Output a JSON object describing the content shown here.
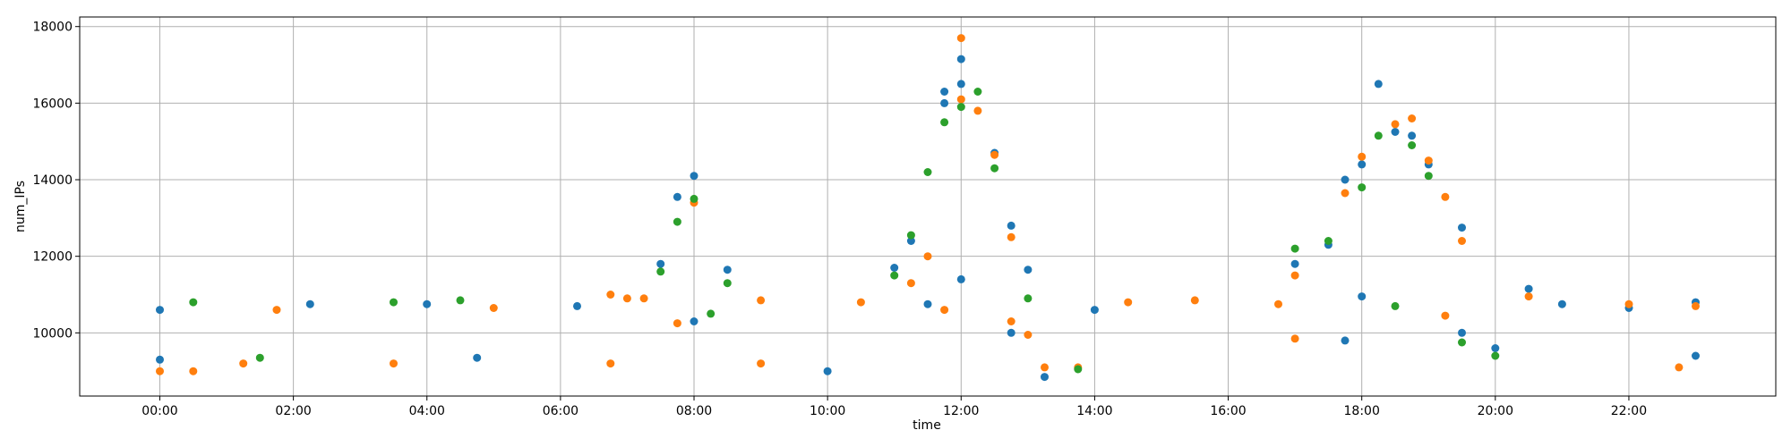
{
  "chart_data": {
    "type": "scatter",
    "title": "",
    "xlabel": "time",
    "ylabel": "num_IPs",
    "xlim": [
      -1.2,
      24.2
    ],
    "ylim": [
      8350,
      18250
    ],
    "grid": true,
    "x_ticks": [
      {
        "value": 0,
        "label": "00:00"
      },
      {
        "value": 2,
        "label": "02:00"
      },
      {
        "value": 4,
        "label": "04:00"
      },
      {
        "value": 6,
        "label": "06:00"
      },
      {
        "value": 8,
        "label": "08:00"
      },
      {
        "value": 10,
        "label": "10:00"
      },
      {
        "value": 12,
        "label": "12:00"
      },
      {
        "value": 14,
        "label": "14:00"
      },
      {
        "value": 16,
        "label": "16:00"
      },
      {
        "value": 18,
        "label": "18:00"
      },
      {
        "value": 20,
        "label": "20:00"
      },
      {
        "value": 22,
        "label": "22:00"
      }
    ],
    "y_ticks": [
      {
        "value": 10000,
        "label": "10000"
      },
      {
        "value": 12000,
        "label": "12000"
      },
      {
        "value": 14000,
        "label": "14000"
      },
      {
        "value": 16000,
        "label": "16000"
      },
      {
        "value": 18000,
        "label": "18000"
      }
    ],
    "x_interval_hours": 0.25,
    "series": [
      {
        "color": "#1f77b4",
        "points": [
          {
            "x": 0,
            "y": 9300
          },
          {
            "x": 0,
            "y": 10600
          },
          {
            "x": 2.25,
            "y": 10750
          },
          {
            "x": 4,
            "y": 10750
          },
          {
            "x": 4.75,
            "y": 9350
          },
          {
            "x": 6.25,
            "y": 10700
          },
          {
            "x": 7.5,
            "y": 11800
          },
          {
            "x": 7.75,
            "y": 13550
          },
          {
            "x": 8,
            "y": 14100
          },
          {
            "x": 8,
            "y": 10300
          },
          {
            "x": 8.5,
            "y": 11650
          },
          {
            "x": 10,
            "y": 9000
          },
          {
            "x": 11,
            "y": 11700
          },
          {
            "x": 11.25,
            "y": 12400
          },
          {
            "x": 11.5,
            "y": 10750
          },
          {
            "x": 11.75,
            "y": 16300
          },
          {
            "x": 11.75,
            "y": 16000
          },
          {
            "x": 12,
            "y": 17150
          },
          {
            "x": 12,
            "y": 16500
          },
          {
            "x": 12,
            "y": 11400
          },
          {
            "x": 12.5,
            "y": 14700
          },
          {
            "x": 12.75,
            "y": 12800
          },
          {
            "x": 12.75,
            "y": 10000
          },
          {
            "x": 13,
            "y": 11650
          },
          {
            "x": 13.25,
            "y": 8850
          },
          {
            "x": 14,
            "y": 10600
          },
          {
            "x": 17,
            "y": 11800
          },
          {
            "x": 17.5,
            "y": 12300
          },
          {
            "x": 17.75,
            "y": 14000
          },
          {
            "x": 17.75,
            "y": 9800
          },
          {
            "x": 18,
            "y": 14400
          },
          {
            "x": 18,
            "y": 10950
          },
          {
            "x": 18.25,
            "y": 16500
          },
          {
            "x": 18.5,
            "y": 15250
          },
          {
            "x": 18.75,
            "y": 15150
          },
          {
            "x": 19,
            "y": 14400
          },
          {
            "x": 19.5,
            "y": 12750
          },
          {
            "x": 19.5,
            "y": 10000
          },
          {
            "x": 20,
            "y": 9600
          },
          {
            "x": 20.5,
            "y": 11150
          },
          {
            "x": 21,
            "y": 10750
          },
          {
            "x": 22,
            "y": 10650
          },
          {
            "x": 23,
            "y": 10800
          },
          {
            "x": 23,
            "y": 9400
          }
        ]
      },
      {
        "color": "#ff7f0e",
        "points": [
          {
            "x": 0,
            "y": 9000
          },
          {
            "x": 0.5,
            "y": 9000
          },
          {
            "x": 1.25,
            "y": 9200
          },
          {
            "x": 1.75,
            "y": 10600
          },
          {
            "x": 3.5,
            "y": 9200
          },
          {
            "x": 5,
            "y": 10650
          },
          {
            "x": 6.75,
            "y": 11000
          },
          {
            "x": 6.75,
            "y": 9200
          },
          {
            "x": 7,
            "y": 10900
          },
          {
            "x": 7.25,
            "y": 10900
          },
          {
            "x": 7.75,
            "y": 10250
          },
          {
            "x": 8,
            "y": 13400
          },
          {
            "x": 9,
            "y": 10850
          },
          {
            "x": 9,
            "y": 9200
          },
          {
            "x": 10.5,
            "y": 10800
          },
          {
            "x": 11.25,
            "y": 11300
          },
          {
            "x": 11.5,
            "y": 12000
          },
          {
            "x": 11.75,
            "y": 10600
          },
          {
            "x": 12,
            "y": 17700
          },
          {
            "x": 12,
            "y": 16100
          },
          {
            "x": 12.25,
            "y": 15800
          },
          {
            "x": 12.5,
            "y": 14650
          },
          {
            "x": 12.75,
            "y": 12500
          },
          {
            "x": 12.75,
            "y": 10300
          },
          {
            "x": 13,
            "y": 9950
          },
          {
            "x": 13.25,
            "y": 9100
          },
          {
            "x": 13.75,
            "y": 9100
          },
          {
            "x": 14.5,
            "y": 10800
          },
          {
            "x": 15.5,
            "y": 10850
          },
          {
            "x": 16.75,
            "y": 10750
          },
          {
            "x": 17,
            "y": 11500
          },
          {
            "x": 17,
            "y": 9850
          },
          {
            "x": 17.75,
            "y": 13650
          },
          {
            "x": 18,
            "y": 14600
          },
          {
            "x": 18.5,
            "y": 15450
          },
          {
            "x": 18.75,
            "y": 15600
          },
          {
            "x": 19,
            "y": 14500
          },
          {
            "x": 19.25,
            "y": 13550
          },
          {
            "x": 19.25,
            "y": 10450
          },
          {
            "x": 19.5,
            "y": 12400
          },
          {
            "x": 20.5,
            "y": 10950
          },
          {
            "x": 22,
            "y": 10750
          },
          {
            "x": 22.75,
            "y": 9100
          },
          {
            "x": 23,
            "y": 10700
          }
        ]
      },
      {
        "color": "#2ca02c",
        "points": [
          {
            "x": 0.5,
            "y": 10800
          },
          {
            "x": 1.5,
            "y": 9350
          },
          {
            "x": 3.5,
            "y": 10800
          },
          {
            "x": 4.5,
            "y": 10850
          },
          {
            "x": 7.5,
            "y": 11600
          },
          {
            "x": 7.75,
            "y": 12900
          },
          {
            "x": 8,
            "y": 13500
          },
          {
            "x": 8.25,
            "y": 10500
          },
          {
            "x": 8.5,
            "y": 11300
          },
          {
            "x": 11,
            "y": 11500
          },
          {
            "x": 11.25,
            "y": 12550
          },
          {
            "x": 11.5,
            "y": 14200
          },
          {
            "x": 11.75,
            "y": 15500
          },
          {
            "x": 12,
            "y": 15900
          },
          {
            "x": 12.25,
            "y": 16300
          },
          {
            "x": 12.5,
            "y": 14300
          },
          {
            "x": 13,
            "y": 10900
          },
          {
            "x": 13.75,
            "y": 9050
          },
          {
            "x": 17,
            "y": 12200
          },
          {
            "x": 17.5,
            "y": 12400
          },
          {
            "x": 18,
            "y": 13800
          },
          {
            "x": 18.25,
            "y": 15150
          },
          {
            "x": 18.5,
            "y": 10700
          },
          {
            "x": 18.75,
            "y": 14900
          },
          {
            "x": 19,
            "y": 14100
          },
          {
            "x": 19.5,
            "y": 9750
          },
          {
            "x": 20,
            "y": 9400
          }
        ]
      }
    ]
  }
}
